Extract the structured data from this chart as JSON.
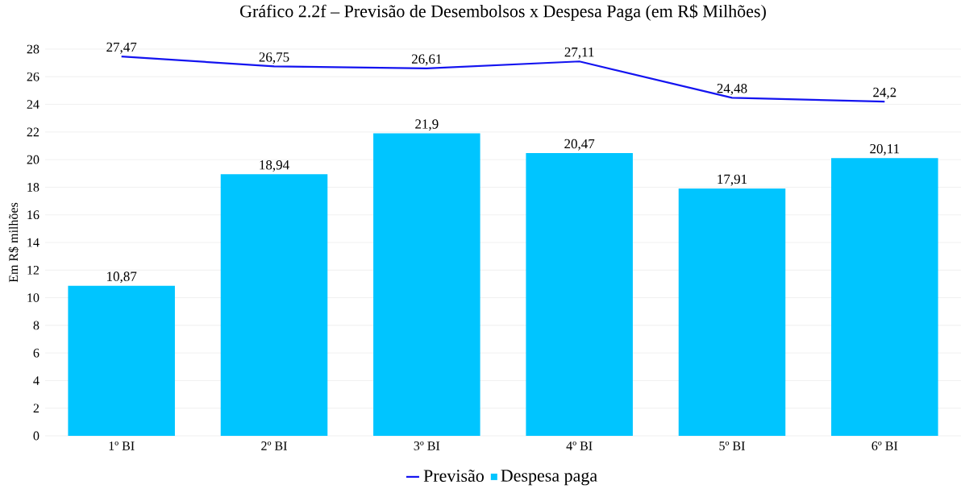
{
  "chart_data": {
    "type": "bar",
    "title": "Gráfico 2.2f – Previsão de Desembolsos x Despesa Paga (em R$ Milhões)",
    "ylabel": "Em R$ milhões",
    "categories": [
      "1º BI",
      "2º BI",
      "3º BI",
      "4º BI",
      "5º BI",
      "6º BI"
    ],
    "series": [
      {
        "name": "Previsão",
        "type": "line",
        "color": "#1414f0",
        "values": [
          27.47,
          26.75,
          26.61,
          27.11,
          24.48,
          24.2
        ],
        "value_labels": [
          "27,47",
          "26,75",
          "26,61",
          "27,11",
          "24,48",
          "24,2"
        ]
      },
      {
        "name": "Despesa paga",
        "color": "#00c5ff",
        "values": [
          10.87,
          18.94,
          21.9,
          20.47,
          17.91,
          20.11
        ],
        "value_labels": [
          "10,87",
          "18,94",
          "21,9",
          "20,47",
          "17,91",
          "20,11"
        ]
      }
    ],
    "ylim": [
      0,
      28
    ],
    "yticks": [
      0,
      2,
      4,
      6,
      8,
      10,
      12,
      14,
      16,
      18,
      20,
      22,
      24,
      26,
      28
    ],
    "grid": "y",
    "legend": "bottom"
  }
}
